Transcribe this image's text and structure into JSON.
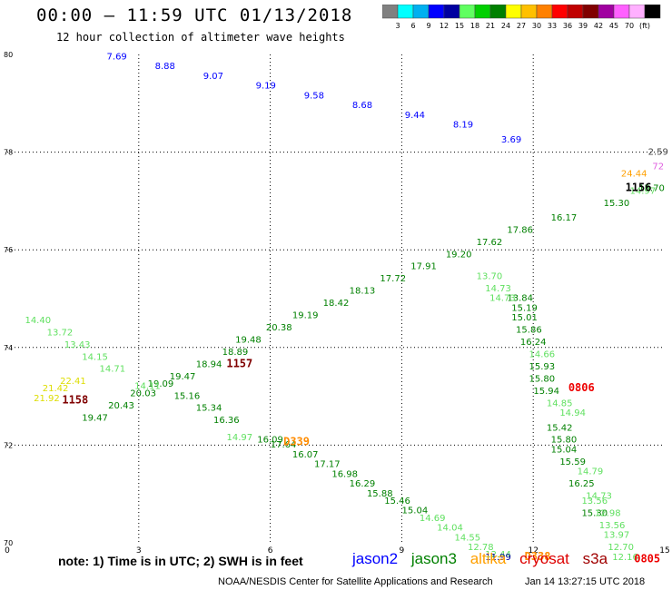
{
  "header": {
    "title": "00:00 – 11:59 UTC 01/13/2018",
    "subtitle": "12 hour collection of altimeter wave heights"
  },
  "colorbar": {
    "colors": [
      "#808080",
      "#00ffff",
      "#00b0f0",
      "#0000ff",
      "#0000a0",
      "#60ff60",
      "#00d000",
      "#008000",
      "#ffff00",
      "#ffc000",
      "#ff8000",
      "#ff0000",
      "#c00000",
      "#800000",
      "#a000a0",
      "#ff60ff",
      "#ffb0ff",
      "#000000"
    ],
    "labels": [
      "3",
      "6",
      "9",
      "12",
      "15",
      "18",
      "21",
      "24",
      "27",
      "30",
      "33",
      "36",
      "39",
      "42",
      "45",
      "70",
      "(ft)"
    ]
  },
  "footer": {
    "note": "note:  1) Time is in UTC;  2) SWH is in feet",
    "satellites": [
      {
        "name": "jason2",
        "color": "#0000ff"
      },
      {
        "name": "jason3",
        "color": "#008000"
      },
      {
        "name": "altika",
        "color": "#ffa000"
      },
      {
        "name": "cryosat",
        "color": "#dd0000"
      },
      {
        "name": "s3a",
        "color": "#a00000"
      }
    ],
    "credit": "NOAA/NESDIS Center for Satellite Applications and Research",
    "timestamp": "Jan 14 13:27:15 UTC 2018"
  },
  "chart_data": {
    "type": "scatter",
    "xlim": [
      0,
      15
    ],
    "ylim": [
      70,
      80
    ],
    "x_ticks": [
      "0",
      "3",
      "6",
      "9",
      "12",
      "15"
    ],
    "y_ticks": [
      "70",
      "72",
      "74",
      "76",
      "78",
      "80"
    ],
    "grid": "dotted",
    "series": [
      {
        "color": "#0000ff",
        "points": [
          [
            2.5,
            79.9,
            "7.69"
          ],
          [
            3.6,
            79.7,
            "8.88"
          ],
          [
            4.7,
            79.5,
            "9.07"
          ],
          [
            5.9,
            79.3,
            "9.19"
          ],
          [
            7.0,
            79.1,
            "9.58"
          ],
          [
            8.1,
            78.9,
            "8.68"
          ],
          [
            9.3,
            78.7,
            "9.44"
          ],
          [
            10.4,
            78.5,
            "8.19"
          ],
          [
            11.5,
            78.2,
            "3.69"
          ]
        ]
      },
      {
        "color": "#008000",
        "points": [
          [
            14.7,
            77.2,
            "15.70"
          ],
          [
            13.9,
            76.9,
            "15.30"
          ],
          [
            12.7,
            76.6,
            "16.17"
          ],
          [
            11.7,
            76.35,
            "17.86"
          ],
          [
            11.0,
            76.1,
            "17.62"
          ],
          [
            10.3,
            75.85,
            "19.20"
          ],
          [
            9.5,
            75.6,
            "17.91"
          ],
          [
            8.8,
            75.35,
            "17.72"
          ],
          [
            8.1,
            75.1,
            "18.13"
          ],
          [
            7.5,
            74.85,
            "18.42"
          ],
          [
            6.8,
            74.6,
            "19.19"
          ],
          [
            6.2,
            74.35,
            "20.38"
          ],
          [
            5.5,
            74.1,
            "19.48"
          ],
          [
            5.2,
            73.85,
            "18.89"
          ],
          [
            4.6,
            73.6,
            "18.94"
          ],
          [
            4.0,
            73.35,
            "19.47"
          ],
          [
            3.5,
            73.2,
            "19.09"
          ],
          [
            3.1,
            73.0,
            "20.03"
          ],
          [
            2.6,
            72.75,
            "20.43"
          ],
          [
            2.0,
            72.5,
            "19.47"
          ],
          [
            4.1,
            72.95,
            "15.16"
          ],
          [
            4.6,
            72.7,
            "15.34"
          ],
          [
            5.0,
            72.45,
            "16.36"
          ],
          [
            6.0,
            72.05,
            "16.09"
          ],
          [
            6.3,
            71.95,
            "17.64"
          ],
          [
            6.8,
            71.75,
            "16.07"
          ],
          [
            7.3,
            71.55,
            "17.17"
          ],
          [
            7.7,
            71.35,
            "16.98"
          ],
          [
            8.1,
            71.15,
            "16.29"
          ],
          [
            8.5,
            70.95,
            "15.88"
          ],
          [
            8.9,
            70.8,
            "15.46"
          ],
          [
            9.3,
            70.6,
            "15.04"
          ],
          [
            11.8,
            74.75,
            "15.19"
          ],
          [
            11.7,
            74.95,
            "13.84"
          ],
          [
            11.8,
            74.55,
            "15.01"
          ],
          [
            11.9,
            74.3,
            "15.86"
          ],
          [
            12.0,
            74.05,
            "16.24"
          ],
          [
            12.2,
            73.55,
            "15.93"
          ],
          [
            12.2,
            73.3,
            "15.80"
          ],
          [
            12.3,
            73.05,
            "15.94"
          ],
          [
            12.6,
            72.3,
            "15.42"
          ],
          [
            12.7,
            72.05,
            "15.80"
          ],
          [
            12.7,
            71.85,
            "15.04"
          ],
          [
            12.9,
            71.6,
            "15.59"
          ],
          [
            13.1,
            71.15,
            "16.25"
          ],
          [
            13.4,
            70.55,
            "15.30"
          ]
        ]
      },
      {
        "color": "#60e060",
        "points": [
          [
            14.5,
            77.15,
            "14.97"
          ],
          [
            0.7,
            74.5,
            "14.40"
          ],
          [
            1.2,
            74.25,
            "13.72"
          ],
          [
            1.6,
            74.0,
            "13.43"
          ],
          [
            2.0,
            73.75,
            "14.15"
          ],
          [
            2.4,
            73.5,
            "14.71"
          ],
          [
            3.2,
            73.15,
            "14.11"
          ],
          [
            5.3,
            72.1,
            "14.97"
          ],
          [
            9.7,
            70.45,
            "14.69"
          ],
          [
            10.1,
            70.25,
            "14.04"
          ],
          [
            10.5,
            70.05,
            "14.55"
          ],
          [
            10.8,
            69.85,
            "12.78"
          ],
          [
            11.2,
            69.7,
            "12.44"
          ],
          [
            11.0,
            75.4,
            "13.70"
          ],
          [
            11.2,
            75.15,
            "14.73"
          ],
          [
            11.3,
            74.95,
            "14.73"
          ],
          [
            12.2,
            73.8,
            "14.66"
          ],
          [
            12.6,
            72.8,
            "14.85"
          ],
          [
            12.9,
            72.6,
            "14.94"
          ],
          [
            13.3,
            71.4,
            "14.79"
          ],
          [
            13.5,
            70.9,
            "14.73"
          ],
          [
            13.7,
            70.55,
            "12.98"
          ],
          [
            13.8,
            70.3,
            "13.56"
          ],
          [
            13.9,
            70.1,
            "13.97"
          ],
          [
            14.0,
            69.85,
            "12.70"
          ],
          [
            14.1,
            69.65,
            "12.16"
          ],
          [
            13.4,
            70.8,
            "13.56"
          ]
        ]
      },
      {
        "color": "#dddd00",
        "points": [
          [
            0.9,
            72.9,
            "21.92"
          ],
          [
            1.1,
            73.1,
            "21.42"
          ],
          [
            1.5,
            73.25,
            "22.41"
          ]
        ]
      },
      {
        "color": "#ffa000",
        "points": [
          [
            14.3,
            77.5,
            "24.44"
          ]
        ]
      },
      {
        "color": "#e060e0",
        "points": [
          [
            14.85,
            77.65,
            "72"
          ]
        ]
      },
      {
        "color": "#404040",
        "points": [
          [
            14.85,
            77.95,
            "2.59"
          ]
        ]
      },
      {
        "color": "#0000a0",
        "points": [
          [
            11.2,
            69.65,
            "11.99"
          ]
        ]
      }
    ],
    "pass_labels": [
      {
        "text": "1158",
        "x": 1.55,
        "y": 72.85,
        "color": "#800000"
      },
      {
        "text": "1157",
        "x": 5.3,
        "y": 73.6,
        "color": "#800000"
      },
      {
        "text": "1156",
        "x": 14.4,
        "y": 77.2,
        "color": "#000000"
      },
      {
        "text": "D339",
        "x": 6.6,
        "y": 72.0,
        "color": "#ff8c00"
      },
      {
        "text": "D338",
        "x": 12.1,
        "y": 69.65,
        "color": "#ff8c00"
      },
      {
        "text": "0806",
        "x": 13.1,
        "y": 73.1,
        "color": "#ee0000"
      },
      {
        "text": "0805",
        "x": 14.6,
        "y": 69.6,
        "color": "#ee0000"
      }
    ]
  }
}
